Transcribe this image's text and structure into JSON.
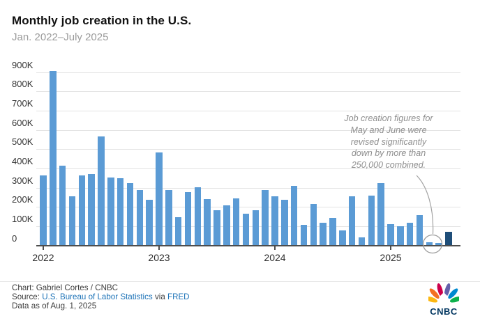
{
  "chart_data": {
    "type": "bar",
    "title": "Monthly job creation in the U.S.",
    "subtitle": "Jan. 2022–July 2025",
    "unit": "jobs (thousands)",
    "ylim": [
      0,
      900
    ],
    "grid": "horizontal",
    "ytick_labels": [
      "0",
      "100K",
      "200K",
      "300K",
      "400K",
      "500K",
      "600K",
      "700K",
      "800K",
      "900K"
    ],
    "x": [
      "2022-01",
      "2022-02",
      "2022-03",
      "2022-04",
      "2022-05",
      "2022-06",
      "2022-07",
      "2022-08",
      "2022-09",
      "2022-10",
      "2022-11",
      "2022-12",
      "2023-01",
      "2023-02",
      "2023-03",
      "2023-04",
      "2023-05",
      "2023-06",
      "2023-07",
      "2023-08",
      "2023-09",
      "2023-10",
      "2023-11",
      "2023-12",
      "2024-01",
      "2024-02",
      "2024-03",
      "2024-04",
      "2024-05",
      "2024-06",
      "2024-07",
      "2024-08",
      "2024-09",
      "2024-10",
      "2024-11",
      "2024-12",
      "2025-01",
      "2025-02",
      "2025-03",
      "2025-04",
      "2025-05",
      "2025-06",
      "2025-07"
    ],
    "values": [
      364,
      904,
      414,
      254,
      364,
      370,
      568,
      352,
      350,
      324,
      290,
      239,
      482,
      287,
      146,
      278,
      303,
      240,
      184,
      210,
      246,
      165,
      182,
      290,
      256,
      236,
      310,
      108,
      216,
      118,
      144,
      78,
      255,
      44,
      261,
      323,
      111,
      102,
      120,
      158,
      19,
      14,
      73
    ],
    "year_ticks": [
      {
        "label": "2022",
        "month_index": 0
      },
      {
        "label": "2023",
        "month_index": 12
      },
      {
        "label": "2024",
        "month_index": 24
      },
      {
        "label": "2025",
        "month_index": 36
      }
    ],
    "bar_color": "#5b9bd5",
    "highlight_bar_color": "#1f4e79",
    "highlight_index": 42,
    "circled_indices": [
      40,
      41
    ],
    "annotation": {
      "lines": [
        "Job creation figures for",
        "May and June were",
        "revised significantly",
        "down by more than",
        "250,000 combined."
      ]
    }
  },
  "footer": {
    "credit": "Chart: Gabriel Cortes / CNBC",
    "source_prefix": "Source: ",
    "source_link1": "U.S. Bureau of Labor Statistics",
    "source_mid": " via ",
    "source_link2": "FRED",
    "asof": "Data as of Aug. 1, 2025",
    "logo_text": "CNBC"
  }
}
